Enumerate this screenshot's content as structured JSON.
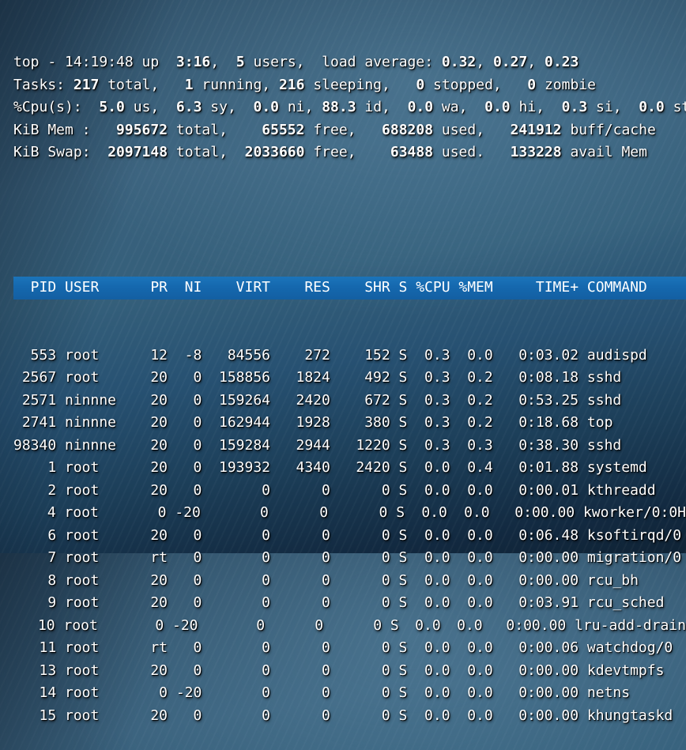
{
  "app": {
    "name": "top",
    "clock": "14:19:48",
    "uptime": "3:16",
    "users": "5",
    "load_average": [
      "0.32",
      "0.27",
      "0.23"
    ]
  },
  "colors": {
    "header_bar_blue": "#1568ae",
    "text": "#ffffff",
    "wallpaper_mid": "#35607b",
    "wallpaper_dark": "#0f2335"
  },
  "summary_lines": [
    {
      "name": "uptime-line",
      "segments": [
        {
          "t": "top - 14:19:48 up ",
          "b": false
        },
        {
          "t": " 3:16",
          "b": true
        },
        {
          "t": ", ",
          "b": false
        },
        {
          "t": " 5",
          "b": true
        },
        {
          "t": " users,  load average: ",
          "b": false
        },
        {
          "t": "0.32",
          "b": true
        },
        {
          "t": ", ",
          "b": false
        },
        {
          "t": "0.27",
          "b": true
        },
        {
          "t": ", ",
          "b": false
        },
        {
          "t": "0.23",
          "b": true
        }
      ]
    },
    {
      "name": "tasks-line",
      "segments": [
        {
          "t": "Tasks: ",
          "b": false
        },
        {
          "t": "217",
          "b": true
        },
        {
          "t": " total, ",
          "b": false
        },
        {
          "t": "  1",
          "b": true
        },
        {
          "t": " running, ",
          "b": false
        },
        {
          "t": "216",
          "b": true
        },
        {
          "t": " sleeping, ",
          "b": false
        },
        {
          "t": "  0",
          "b": true
        },
        {
          "t": " stopped, ",
          "b": false
        },
        {
          "t": "  0",
          "b": true
        },
        {
          "t": " zombie",
          "b": false
        }
      ]
    },
    {
      "name": "cpu-line",
      "segments": [
        {
          "t": "%Cpu(s): ",
          "b": false
        },
        {
          "t": " 5.0",
          "b": true
        },
        {
          "t": " us, ",
          "b": false
        },
        {
          "t": " 6.3",
          "b": true
        },
        {
          "t": " sy, ",
          "b": false
        },
        {
          "t": " 0.0",
          "b": true
        },
        {
          "t": " ni, ",
          "b": false
        },
        {
          "t": "88.3",
          "b": true
        },
        {
          "t": " id, ",
          "b": false
        },
        {
          "t": " 0.0",
          "b": true
        },
        {
          "t": " wa, ",
          "b": false
        },
        {
          "t": " 0.0",
          "b": true
        },
        {
          "t": " hi, ",
          "b": false
        },
        {
          "t": " 0.3",
          "b": true
        },
        {
          "t": " si, ",
          "b": false
        },
        {
          "t": " 0.0",
          "b": true
        },
        {
          "t": " st",
          "b": false
        }
      ]
    },
    {
      "name": "mem-line",
      "segments": [
        {
          "t": "KiB Mem : ",
          "b": false
        },
        {
          "t": "  995672",
          "b": true
        },
        {
          "t": " total, ",
          "b": false
        },
        {
          "t": "   65552",
          "b": true
        },
        {
          "t": " free, ",
          "b": false
        },
        {
          "t": "  688208",
          "b": true
        },
        {
          "t": " used, ",
          "b": false
        },
        {
          "t": "  241912",
          "b": true
        },
        {
          "t": " buff/cache",
          "b": false
        }
      ]
    },
    {
      "name": "swap-line",
      "segments": [
        {
          "t": "KiB Swap: ",
          "b": false
        },
        {
          "t": " 2097148",
          "b": true
        },
        {
          "t": " total, ",
          "b": false
        },
        {
          "t": " 2033660",
          "b": true
        },
        {
          "t": " free, ",
          "b": false
        },
        {
          "t": "   63488",
          "b": true
        },
        {
          "t": " used. ",
          "b": false
        },
        {
          "t": "  133228",
          "b": true
        },
        {
          "t": " avail Mem",
          "b": false
        }
      ]
    }
  ],
  "process_table": {
    "columns": [
      {
        "key": "pid",
        "label": "PID"
      },
      {
        "key": "user",
        "label": "USER"
      },
      {
        "key": "pr",
        "label": "PR"
      },
      {
        "key": "ni",
        "label": "NI"
      },
      {
        "key": "virt",
        "label": "VIRT"
      },
      {
        "key": "res",
        "label": "RES"
      },
      {
        "key": "shr",
        "label": "SHR"
      },
      {
        "key": "s",
        "label": "S"
      },
      {
        "key": "cpu",
        "label": "%CPU"
      },
      {
        "key": "mem",
        "label": "%MEM"
      },
      {
        "key": "time",
        "label": "TIME+"
      },
      {
        "key": "command",
        "label": "COMMAND"
      }
    ],
    "rows": [
      {
        "pid": "553",
        "user": "root",
        "pr": "12",
        "ni": "-8",
        "virt": "84556",
        "res": "272",
        "shr": "152",
        "s": "S",
        "cpu": "0.3",
        "mem": "0.0",
        "time": "0:03.02",
        "command": "audispd"
      },
      {
        "pid": "2567",
        "user": "root",
        "pr": "20",
        "ni": "0",
        "virt": "158856",
        "res": "1824",
        "shr": "492",
        "s": "S",
        "cpu": "0.3",
        "mem": "0.2",
        "time": "0:08.18",
        "command": "sshd"
      },
      {
        "pid": "2571",
        "user": "ninnne",
        "pr": "20",
        "ni": "0",
        "virt": "159264",
        "res": "2420",
        "shr": "672",
        "s": "S",
        "cpu": "0.3",
        "mem": "0.2",
        "time": "0:53.25",
        "command": "sshd"
      },
      {
        "pid": "2741",
        "user": "ninnne",
        "pr": "20",
        "ni": "0",
        "virt": "162944",
        "res": "1928",
        "shr": "380",
        "s": "S",
        "cpu": "0.3",
        "mem": "0.2",
        "time": "0:18.68",
        "command": "top"
      },
      {
        "pid": "98340",
        "user": "ninnne",
        "pr": "20",
        "ni": "0",
        "virt": "159284",
        "res": "2944",
        "shr": "1220",
        "s": "S",
        "cpu": "0.3",
        "mem": "0.3",
        "time": "0:38.30",
        "command": "sshd"
      },
      {
        "pid": "1",
        "user": "root",
        "pr": "20",
        "ni": "0",
        "virt": "193932",
        "res": "4340",
        "shr": "2420",
        "s": "S",
        "cpu": "0.0",
        "mem": "0.4",
        "time": "0:01.88",
        "command": "systemd"
      },
      {
        "pid": "2",
        "user": "root",
        "pr": "20",
        "ni": "0",
        "virt": "0",
        "res": "0",
        "shr": "0",
        "s": "S",
        "cpu": "0.0",
        "mem": "0.0",
        "time": "0:00.01",
        "command": "kthreadd"
      },
      {
        "pid": "4",
        "user": "root",
        "pr": "0",
        "ni": "-20",
        "virt": "0",
        "res": "0",
        "shr": "0",
        "s": "S",
        "cpu": "0.0",
        "mem": "0.0",
        "time": "0:00.00",
        "command": "kworker/0:0H"
      },
      {
        "pid": "6",
        "user": "root",
        "pr": "20",
        "ni": "0",
        "virt": "0",
        "res": "0",
        "shr": "0",
        "s": "S",
        "cpu": "0.0",
        "mem": "0.0",
        "time": "0:06.48",
        "command": "ksoftirqd/0"
      },
      {
        "pid": "7",
        "user": "root",
        "pr": "rt",
        "ni": "0",
        "virt": "0",
        "res": "0",
        "shr": "0",
        "s": "S",
        "cpu": "0.0",
        "mem": "0.0",
        "time": "0:00.00",
        "command": "migration/0"
      },
      {
        "pid": "8",
        "user": "root",
        "pr": "20",
        "ni": "0",
        "virt": "0",
        "res": "0",
        "shr": "0",
        "s": "S",
        "cpu": "0.0",
        "mem": "0.0",
        "time": "0:00.00",
        "command": "rcu_bh"
      },
      {
        "pid": "9",
        "user": "root",
        "pr": "20",
        "ni": "0",
        "virt": "0",
        "res": "0",
        "shr": "0",
        "s": "S",
        "cpu": "0.0",
        "mem": "0.0",
        "time": "0:03.91",
        "command": "rcu_sched"
      },
      {
        "pid": "10",
        "user": "root",
        "pr": "0",
        "ni": "-20",
        "virt": "0",
        "res": "0",
        "shr": "0",
        "s": "S",
        "cpu": "0.0",
        "mem": "0.0",
        "time": "0:00.00",
        "command": "lru-add-drain"
      },
      {
        "pid": "11",
        "user": "root",
        "pr": "rt",
        "ni": "0",
        "virt": "0",
        "res": "0",
        "shr": "0",
        "s": "S",
        "cpu": "0.0",
        "mem": "0.0",
        "time": "0:00.06",
        "command": "watchdog/0"
      },
      {
        "pid": "13",
        "user": "root",
        "pr": "20",
        "ni": "0",
        "virt": "0",
        "res": "0",
        "shr": "0",
        "s": "S",
        "cpu": "0.0",
        "mem": "0.0",
        "time": "0:00.00",
        "command": "kdevtmpfs"
      },
      {
        "pid": "14",
        "user": "root",
        "pr": "0",
        "ni": "-20",
        "virt": "0",
        "res": "0",
        "shr": "0",
        "s": "S",
        "cpu": "0.0",
        "mem": "0.0",
        "time": "0:00.00",
        "command": "netns"
      },
      {
        "pid": "15",
        "user": "root",
        "pr": "20",
        "ni": "0",
        "virt": "0",
        "res": "0",
        "shr": "0",
        "s": "S",
        "cpu": "0.0",
        "mem": "0.0",
        "time": "0:00.00",
        "command": "khungtaskd"
      }
    ]
  }
}
